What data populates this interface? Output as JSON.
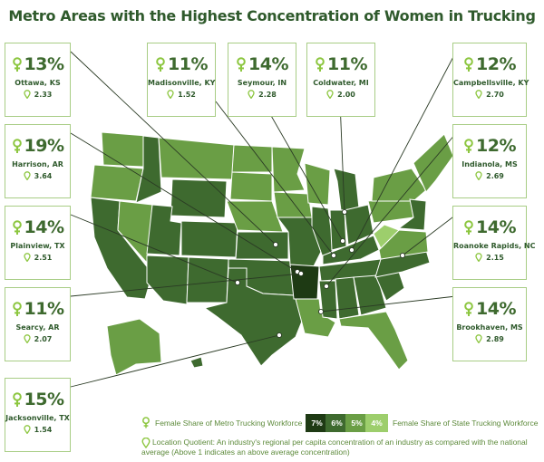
{
  "title": "Metro Areas with the Highest Concentration of Women in Trucking",
  "colors": {
    "shade_7": "#1e3a14",
    "shade_6": "#3e6a2f",
    "shade_5": "#6a9e45",
    "shade_4": "#9dce6c",
    "card_border": "#a8cd85",
    "text_dark": "#2f5a2c",
    "accent": "#8cc63f"
  },
  "icons": {
    "female": "female-symbol-icon",
    "location": "location-pin-icon"
  },
  "metros": [
    {
      "id": "ottawa",
      "pct": "13%",
      "city": "Ottawa, KS",
      "lq": "2.33"
    },
    {
      "id": "madisonville",
      "pct": "11%",
      "city": "Madisonville, KY",
      "lq": "1.52"
    },
    {
      "id": "seymour",
      "pct": "14%",
      "city": "Seymour, IN",
      "lq": "2.28"
    },
    {
      "id": "coldwater",
      "pct": "11%",
      "city": "Coldwater, MI",
      "lq": "2.00"
    },
    {
      "id": "campbellsville",
      "pct": "12%",
      "city": "Campbellsville, KY",
      "lq": "2.70"
    },
    {
      "id": "harrison",
      "pct": "19%",
      "city": "Harrison, AR",
      "lq": "3.64"
    },
    {
      "id": "indianola",
      "pct": "12%",
      "city": "Indianola, MS",
      "lq": "2.69"
    },
    {
      "id": "plainview",
      "pct": "14%",
      "city": "Plainview, TX",
      "lq": "2.51"
    },
    {
      "id": "roanoke",
      "pct": "14%",
      "city": "Roanoke Rapids, NC",
      "lq": "2.15"
    },
    {
      "id": "searcy",
      "pct": "11%",
      "city": "Searcy, AR",
      "lq": "2.07"
    },
    {
      "id": "brookhaven",
      "pct": "14%",
      "city": "Brookhaven, MS",
      "lq": "2.89"
    },
    {
      "id": "jacksonville",
      "pct": "15%",
      "city": "Jacksonville, TX",
      "lq": "1.54"
    }
  ],
  "legend": {
    "metro_label": "Female Share of Metro Trucking Workforce",
    "state_label": "Female Share of State Trucking Workforce",
    "shares": [
      "7%",
      "6%",
      "5%",
      "4%"
    ],
    "lq_text_1": "Location Quotient: An industry's regional per capita concentration of an industry as compared with the national",
    "lq_text_2": "average (Above 1 indicates an above average concentration)"
  }
}
